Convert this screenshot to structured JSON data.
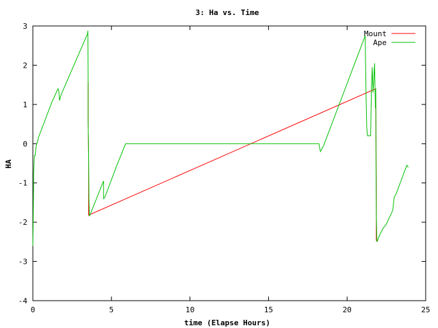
{
  "chart_data": {
    "type": "line",
    "title": "3: Ha vs. Time",
    "xlabel": "time (Elapse Hours)",
    "ylabel": "HA",
    "xlim": [
      0,
      25
    ],
    "ylim": [
      -4,
      3
    ],
    "xticks": [
      "0",
      "5",
      "10",
      "15",
      "20",
      "25"
    ],
    "yticks": [
      "-4",
      "-3",
      "-2",
      "-1",
      "0",
      "1",
      "2",
      "3"
    ],
    "grid": false,
    "legend_position": "top-right",
    "series": [
      {
        "name": "Mount",
        "color": "#ff0000",
        "x": [
          3.52,
          3.52,
          3.55,
          3.55,
          21.82,
          21.84,
          21.86,
          21.86,
          21.9
        ],
        "y": [
          1.55,
          0.55,
          -0.25,
          -1.82,
          1.4,
          0.2,
          -1.35,
          -2.45,
          -2.5
        ]
      },
      {
        "name": "Ape",
        "color": "#00c000",
        "x": [
          0,
          0.02,
          0.05,
          0.05,
          0.08,
          0.1,
          0.15,
          0.2,
          0.25,
          0.3,
          0.35,
          1.2,
          1.6,
          1.65,
          1.7,
          1.8,
          3.48,
          3.5,
          3.52,
          3.52,
          3.55,
          3.57,
          3.6,
          3.7,
          4.4,
          4.5,
          4.5,
          4.6,
          5.3,
          5.9,
          6.0,
          10,
          15,
          18.2,
          18.3,
          18.5,
          21.1,
          21.15,
          21.2,
          21.25,
          21.3,
          21.35,
          21.5,
          21.55,
          21.6,
          21.65,
          21.75,
          21.8,
          21.82,
          21.84,
          21.86,
          21.88,
          21.9,
          21.95,
          22.1,
          22.3,
          22.5,
          22.9,
          23.0,
          23.1,
          23.8,
          23.9
        ],
        "y": [
          -2.6,
          -2.0,
          -1.0,
          -0.8,
          -0.5,
          -0.3,
          -0.3,
          -0.1,
          0.0,
          0.05,
          0.15,
          1.05,
          1.4,
          1.35,
          1.1,
          1.25,
          2.8,
          2.88,
          1.8,
          0.6,
          -0.3,
          -1.4,
          -1.85,
          -1.75,
          -1.05,
          -0.95,
          -1.4,
          -1.35,
          -0.6,
          0.0,
          0.0,
          0.0,
          0.0,
          0.0,
          -0.2,
          -0.05,
          2.7,
          2.75,
          1.3,
          0.4,
          0.2,
          0.2,
          0.2,
          1.5,
          1.95,
          1.3,
          2.05,
          0.9,
          1.4,
          -0.5,
          -1.8,
          -2.2,
          -2.5,
          -2.45,
          -2.3,
          -2.15,
          -2.05,
          -1.7,
          -1.35,
          -1.3,
          -0.55,
          -0.6
        ]
      }
    ]
  }
}
